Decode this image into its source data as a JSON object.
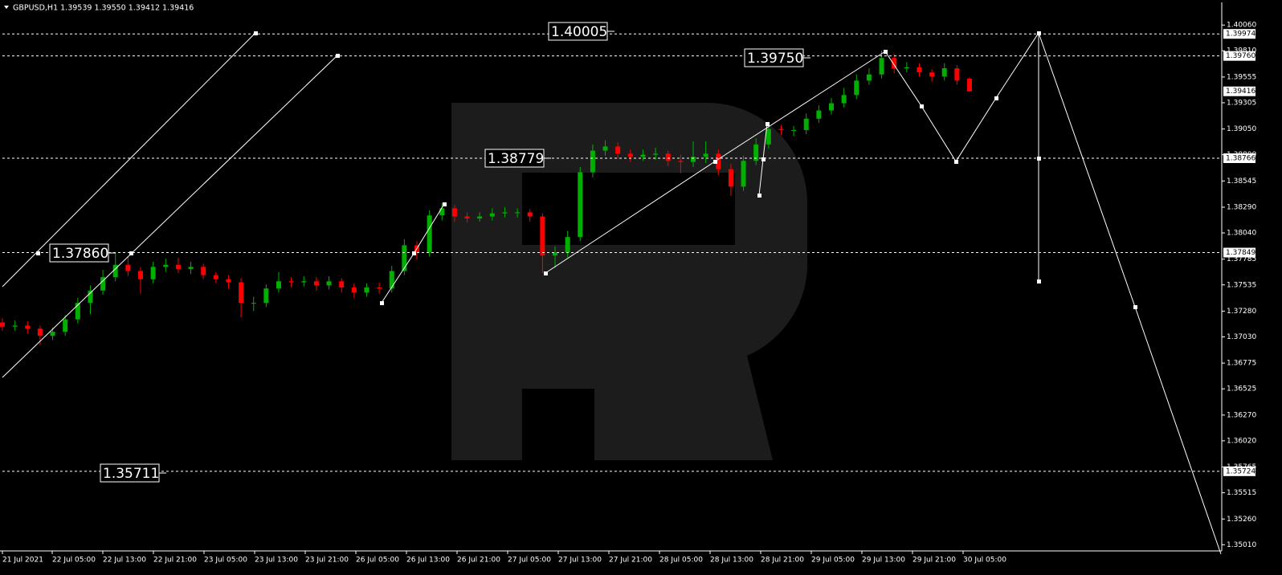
{
  "chart_data": {
    "type": "candlestick",
    "title": "GBPUSD,H1  1.39539 1.39550 1.39412 1.39416",
    "x_tick_labels": [
      "21 Jul 2021",
      "22 Jul 05:00",
      "22 Jul 13:00",
      "22 Jul 21:00",
      "23 Jul 05:00",
      "23 Jul 13:00",
      "23 Jul 21:00",
      "26 Jul 05:00",
      "26 Jul 13:00",
      "26 Jul 21:00",
      "27 Jul 05:00",
      "27 Jul 13:00",
      "27 Jul 21:00",
      "28 Jul 05:00",
      "28 Jul 13:00",
      "28 Jul 21:00",
      "29 Jul 05:00",
      "29 Jul 13:00",
      "29 Jul 21:00",
      "30 Jul 05:00"
    ],
    "series": {
      "up_color": "#00b000",
      "down_color": "#ff0000",
      "open": [
        1.3717,
        1.3713,
        1.3714,
        1.3711,
        1.3704,
        1.3708,
        1.372,
        1.3736,
        1.3748,
        1.3761,
        1.3773,
        1.3767,
        1.3759,
        1.3771,
        1.3773,
        1.3769,
        1.3771,
        1.3763,
        1.3759,
        1.3756,
        1.3736,
        1.3736,
        1.375,
        1.3757,
        1.3756,
        1.3757,
        1.3753,
        1.3757,
        1.3751,
        1.3746,
        1.3751,
        1.375,
        1.3767,
        1.3792,
        1.3785,
        1.3821,
        1.3828,
        1.382,
        1.3818,
        1.382,
        1.3823,
        1.3824,
        1.3824,
        1.382,
        1.3782,
        1.3785,
        1.38,
        1.3863,
        1.3884,
        1.3888,
        1.3881,
        1.3878,
        1.388,
        1.3881,
        1.3874,
        1.3873,
        1.3878,
        1.3881,
        1.3866,
        1.3849,
        1.3874,
        1.389,
        1.3905,
        1.3904,
        1.3904,
        1.3915,
        1.3923,
        1.393,
        1.3938,
        1.3952,
        1.3958,
        1.3974,
        1.3964,
        1.3965,
        1.396,
        1.3956,
        1.3964,
        1.39539
      ],
      "high": [
        1.3721,
        1.3719,
        1.3718,
        1.3714,
        1.3712,
        1.3724,
        1.3741,
        1.3753,
        1.3768,
        1.3785,
        1.3781,
        1.3771,
        1.3776,
        1.3779,
        1.378,
        1.3776,
        1.3774,
        1.3766,
        1.3763,
        1.376,
        1.3742,
        1.3754,
        1.3766,
        1.3761,
        1.3762,
        1.3761,
        1.3762,
        1.376,
        1.3755,
        1.3755,
        1.3756,
        1.3772,
        1.3798,
        1.3796,
        1.3826,
        1.3833,
        1.3831,
        1.3824,
        1.3824,
        1.3828,
        1.3829,
        1.3828,
        1.3827,
        1.3823,
        1.3791,
        1.3806,
        1.3868,
        1.389,
        1.3894,
        1.3892,
        1.3885,
        1.3885,
        1.3887,
        1.3884,
        1.388,
        1.3893,
        1.3893,
        1.3885,
        1.3871,
        1.3879,
        1.3896,
        1.3912,
        1.3909,
        1.3908,
        1.392,
        1.3928,
        1.3935,
        1.3945,
        1.3958,
        1.3964,
        1.3981,
        1.3978,
        1.397,
        1.3969,
        1.3963,
        1.3969,
        1.3967,
        1.3955
      ],
      "low": [
        1.3709,
        1.3709,
        1.3706,
        1.3695,
        1.37,
        1.3704,
        1.3716,
        1.3725,
        1.3744,
        1.3757,
        1.3762,
        1.3745,
        1.3755,
        1.3766,
        1.3765,
        1.3764,
        1.3759,
        1.3755,
        1.375,
        1.3722,
        1.3728,
        1.3732,
        1.3746,
        1.3751,
        1.3752,
        1.3748,
        1.3749,
        1.3746,
        1.3741,
        1.3742,
        1.3745,
        1.3746,
        1.3763,
        1.3778,
        1.3781,
        1.3816,
        1.3815,
        1.3814,
        1.3815,
        1.3816,
        1.3819,
        1.3819,
        1.3815,
        1.3765,
        1.377,
        1.378,
        1.3796,
        1.3858,
        1.3879,
        1.3876,
        1.3873,
        1.3874,
        1.3875,
        1.3869,
        1.3862,
        1.3868,
        1.3872,
        1.386,
        1.384,
        1.3845,
        1.387,
        1.3886,
        1.3899,
        1.3898,
        1.39,
        1.3911,
        1.3919,
        1.3926,
        1.3934,
        1.3948,
        1.3954,
        1.3959,
        1.396,
        1.3956,
        1.3951,
        1.3952,
        1.3948,
        1.39412
      ],
      "close": [
        1.3713,
        1.3714,
        1.3711,
        1.3704,
        1.3708,
        1.372,
        1.3736,
        1.3748,
        1.3761,
        1.3773,
        1.3767,
        1.3759,
        1.3771,
        1.3773,
        1.3769,
        1.3771,
        1.3763,
        1.3759,
        1.3756,
        1.3736,
        1.3736,
        1.375,
        1.3757,
        1.3756,
        1.3757,
        1.3753,
        1.3757,
        1.3751,
        1.3746,
        1.3751,
        1.375,
        1.3767,
        1.3792,
        1.3785,
        1.3821,
        1.3828,
        1.382,
        1.3818,
        1.382,
        1.3823,
        1.3824,
        1.3824,
        1.382,
        1.3782,
        1.3785,
        1.38,
        1.3863,
        1.3884,
        1.3888,
        1.3881,
        1.3878,
        1.388,
        1.3881,
        1.3874,
        1.3873,
        1.3878,
        1.3881,
        1.3866,
        1.3849,
        1.3874,
        1.389,
        1.3905,
        1.3904,
        1.3904,
        1.3915,
        1.3923,
        1.393,
        1.3938,
        1.3952,
        1.3958,
        1.3974,
        1.3964,
        1.3965,
        1.396,
        1.3956,
        1.3964,
        1.3952,
        1.39416
      ]
    },
    "ylim": [
      1.3495,
      1.4028
    ],
    "yticks": [
      {
        "value": 1.4006,
        "label": "1.40060"
      },
      {
        "value": 1.3981,
        "label": "1.39810"
      },
      {
        "value": 1.39555,
        "label": "1.39555"
      },
      {
        "value": 1.39305,
        "label": "1.39305"
      },
      {
        "value": 1.3905,
        "label": "1.39050"
      },
      {
        "value": 1.388,
        "label": "1.38800"
      },
      {
        "value": 1.38545,
        "label": "1.38545"
      },
      {
        "value": 1.3829,
        "label": "1.38290"
      },
      {
        "value": 1.3804,
        "label": "1.38040"
      },
      {
        "value": 1.37785,
        "label": "1.37785"
      },
      {
        "value": 1.37535,
        "label": "1.37535"
      },
      {
        "value": 1.3728,
        "label": "1.37280"
      },
      {
        "value": 1.3703,
        "label": "1.37030"
      },
      {
        "value": 1.36775,
        "label": "1.36775"
      },
      {
        "value": 1.36525,
        "label": "1.36525"
      },
      {
        "value": 1.3627,
        "label": "1.36270"
      },
      {
        "value": 1.3602,
        "label": "1.36020"
      },
      {
        "value": 1.35765,
        "label": "1.35765"
      },
      {
        "value": 1.35515,
        "label": "1.35515"
      },
      {
        "value": 1.3526,
        "label": "1.35260"
      },
      {
        "value": 1.3501,
        "label": "1.35010"
      }
    ],
    "levels": [
      {
        "value": 1.39974,
        "label": "1.39974"
      },
      {
        "value": 1.3976,
        "label": "1.39760"
      },
      {
        "value": 1.38766,
        "label": "1.38766"
      },
      {
        "value": 1.37849,
        "label": "1.37849"
      },
      {
        "value": 1.35724,
        "label": "1.35724"
      }
    ],
    "last_price": {
      "value": 1.39416,
      "label": "1.39416"
    },
    "annotations": [
      "1.40005",
      "1.39750",
      "1.38779",
      "1.37860",
      "1.35711"
    ]
  }
}
